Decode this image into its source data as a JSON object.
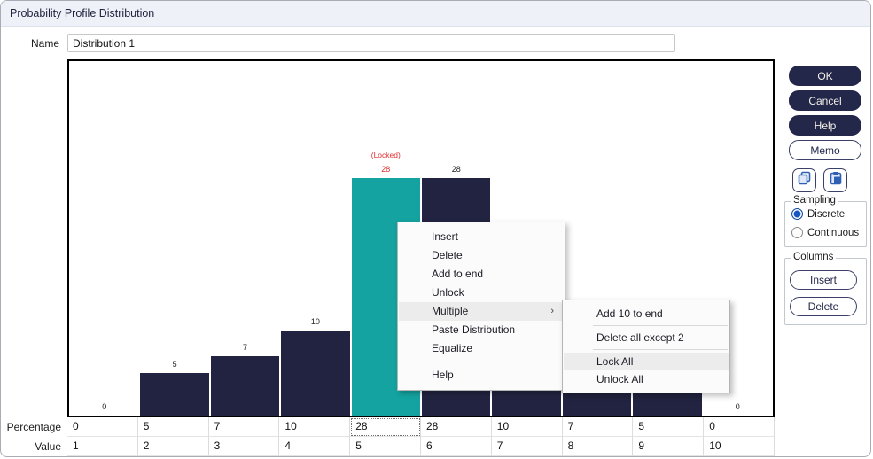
{
  "window": {
    "title": "Probability Profile Distribution"
  },
  "name_field": {
    "label": "Name",
    "value": "Distribution 1"
  },
  "chart_data": {
    "type": "bar",
    "categories": [
      1,
      2,
      3,
      4,
      5,
      6,
      7,
      8,
      9,
      10
    ],
    "values": [
      0,
      5,
      7,
      10,
      28,
      28,
      10,
      7,
      5,
      0
    ],
    "locked_bar": {
      "category": 5,
      "value": 28,
      "annotation": "(Locked)"
    },
    "ylim": [
      0,
      30
    ],
    "bar_color": "#212340",
    "locked_bar_color": "#14a3a0",
    "locked_text_color": "#e03030",
    "grid": false,
    "title": "",
    "xlabel": "",
    "ylabel": ""
  },
  "table": {
    "rows": [
      {
        "label": "Percentage",
        "values": [
          "0",
          "5",
          "7",
          "10",
          "28",
          "28",
          "10",
          "7",
          "5",
          "0"
        ]
      },
      {
        "label": "Value",
        "values": [
          "1",
          "2",
          "3",
          "4",
          "5",
          "6",
          "7",
          "8",
          "9",
          "10"
        ]
      }
    ],
    "selected_cell": {
      "row_index": 0,
      "column_index": 4
    }
  },
  "context_menu": {
    "items": [
      {
        "label": "Insert"
      },
      {
        "label": "Delete"
      },
      {
        "label": "Add to end"
      },
      {
        "label": "Unlock"
      },
      {
        "label": "Multiple",
        "highlighted": true,
        "has_submenu": true
      },
      {
        "label": "Paste Distribution"
      },
      {
        "label": "Equalize"
      },
      {
        "separator": true
      },
      {
        "label": "Help"
      }
    ]
  },
  "submenu": {
    "items": [
      {
        "label": "Add 10 to end"
      },
      {
        "separator": true
      },
      {
        "label": "Delete all except 2"
      },
      {
        "separator": true
      },
      {
        "label": "Lock All",
        "highlighted": true
      },
      {
        "label": "Unlock All"
      }
    ]
  },
  "actions": {
    "ok": "OK",
    "cancel": "Cancel",
    "help": "Help",
    "memo": "Memo"
  },
  "icon_buttons": [
    {
      "name": "copy-icon"
    },
    {
      "name": "paste-icon"
    }
  ],
  "sampling": {
    "label": "Sampling",
    "options": [
      {
        "label": "Discrete",
        "selected": true
      },
      {
        "label": "Continuous",
        "selected": false
      }
    ]
  },
  "columns_group": {
    "label": "Columns",
    "insert": "Insert",
    "delete": "Delete"
  },
  "colors": {
    "accent_navy": "#23274a",
    "accent_teal": "#14a3a0",
    "locked_red": "#e03030",
    "radio_blue": "#1656c0"
  }
}
